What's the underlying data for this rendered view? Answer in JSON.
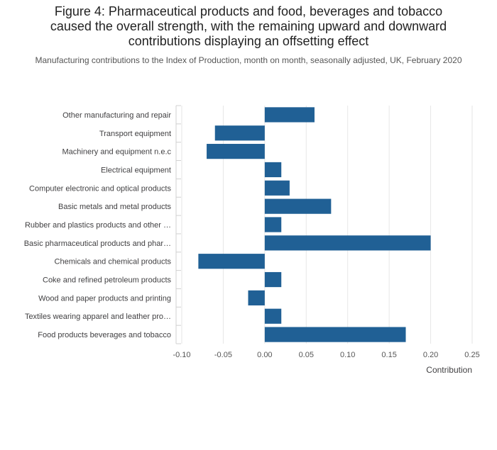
{
  "chart_data": {
    "type": "bar",
    "orientation": "horizontal",
    "title_lines": [
      "Figure 4: Pharmaceutical products and food, beverages and tobacco",
      "caused the overall strength, with the remaining upward and downward",
      "contributions displaying an offsetting effect"
    ],
    "subtitle": "Manufacturing contributions to the Index of Production, month on month, seasonally adjusted, UK, February 2020",
    "categories": [
      "Other manufacturing and repair",
      "Transport equipment",
      "Machinery and equipment n.e.c",
      "Electrical equipment",
      "Computer electronic and optical products",
      "Basic metals and metal products",
      "Rubber and plastics products and other …",
      "Basic pharmaceutical products and phar…",
      "Chemicals and chemical products",
      "Coke and refined petroleum products",
      "Wood and paper products and printing",
      "Textiles wearing apparel and leather pro…",
      "Food products beverages and tobacco"
    ],
    "values": [
      0.06,
      -0.06,
      -0.07,
      0.02,
      0.03,
      0.08,
      0.02,
      0.2,
      -0.08,
      0.02,
      -0.02,
      0.02,
      0.17
    ],
    "xlabel": "Contribution",
    "xlim": [
      -0.1,
      0.25
    ],
    "xticks": [
      -0.1,
      -0.05,
      0.0,
      0.05,
      0.1,
      0.15,
      0.2,
      0.25
    ],
    "xtick_labels": [
      "-0.10",
      "-0.05",
      "0.00",
      "0.05",
      "0.10",
      "0.15",
      "0.20",
      "0.25"
    ],
    "grid": true,
    "bar_color": "#206095",
    "grid_color": "#e6e6e6"
  }
}
